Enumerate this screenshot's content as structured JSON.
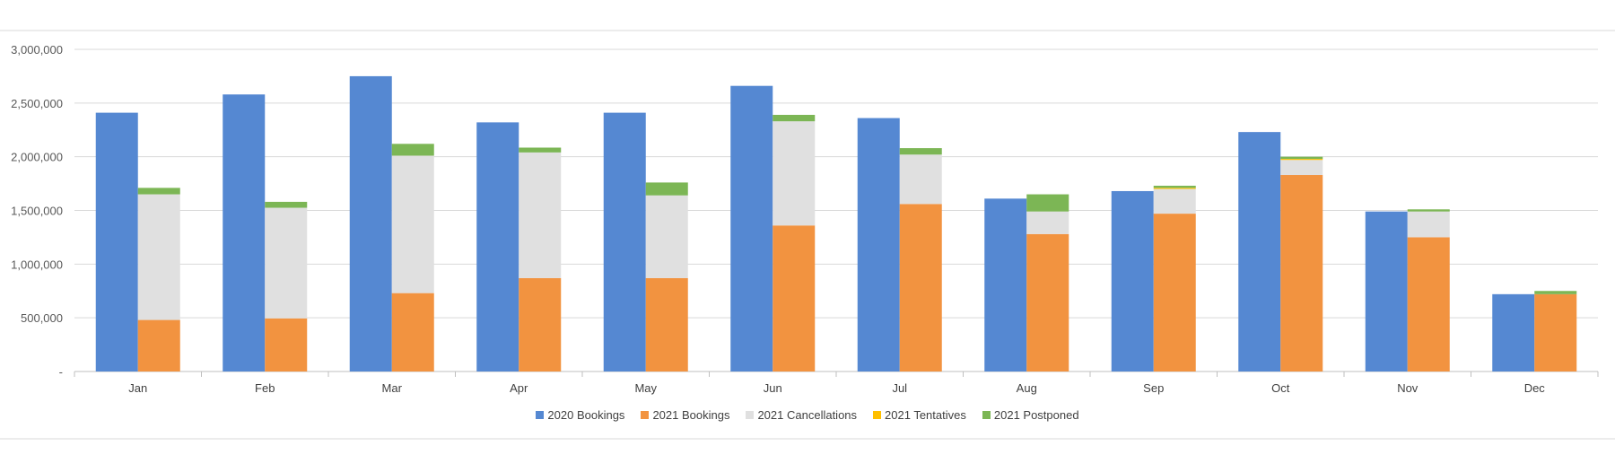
{
  "chart_data": {
    "type": "bar",
    "title": "",
    "xlabel": "",
    "ylabel": "",
    "ylim": [
      0,
      3000000
    ],
    "y_ticks": [
      0,
      500000,
      1000000,
      1500000,
      2000000,
      2500000,
      3000000
    ],
    "y_tick_labels": [
      "-",
      "500,000",
      "1,000,000",
      "1,500,000",
      "2,000,000",
      "2,500,000",
      "3,000,000"
    ],
    "categories": [
      "Jan",
      "Feb",
      "Mar",
      "Apr",
      "May",
      "Jun",
      "Jul",
      "Aug",
      "Sep",
      "Oct",
      "Nov",
      "Dec"
    ],
    "grid": true,
    "legend_position": "bottom",
    "series": [
      {
        "name": "2020 Bookings",
        "color": "#5588D2",
        "stack": "2020",
        "values": [
          2410000,
          2580000,
          2750000,
          2320000,
          2410000,
          2660000,
          2360000,
          1610000,
          1680000,
          2230000,
          1490000,
          720000
        ]
      },
      {
        "name": "2021 Bookings",
        "color": "#F29340",
        "stack": "2021",
        "values": [
          480000,
          495000,
          730000,
          870000,
          870000,
          1360000,
          1560000,
          1280000,
          1470000,
          1830000,
          1250000,
          720000
        ]
      },
      {
        "name": "2021 Cancellations",
        "color": "#E0E0E0",
        "stack": "2021",
        "values": [
          1170000,
          1030000,
          1280000,
          1170000,
          770000,
          970000,
          460000,
          210000,
          230000,
          140000,
          240000,
          0
        ]
      },
      {
        "name": "2021 Tentatives",
        "color": "#FFC000",
        "stack": "2021",
        "values": [
          0,
          0,
          0,
          0,
          0,
          0,
          0,
          0,
          10000,
          10000,
          0,
          0
        ]
      },
      {
        "name": "2021 Postponed",
        "color": "#7CB655",
        "stack": "2021",
        "values": [
          60000,
          55000,
          110000,
          45000,
          120000,
          60000,
          60000,
          160000,
          20000,
          20000,
          20000,
          30000
        ]
      }
    ]
  }
}
